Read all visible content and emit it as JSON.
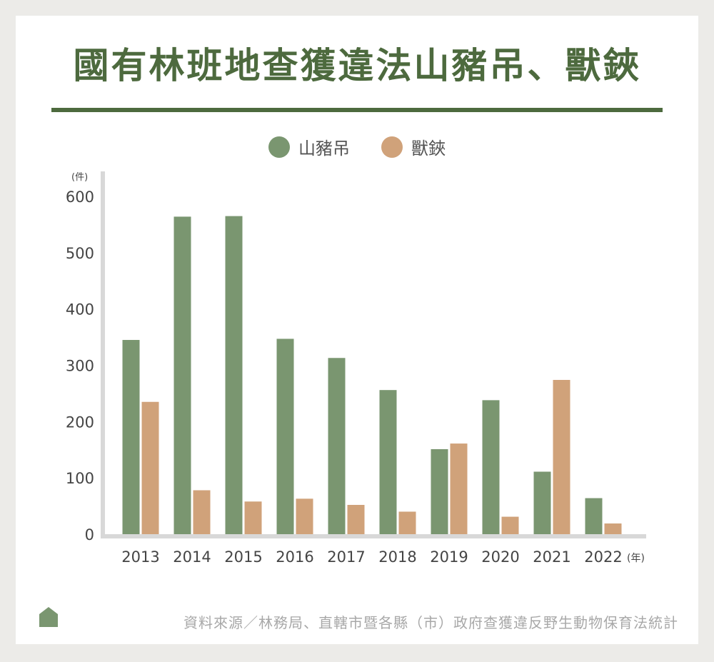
{
  "title": "國有林班地查獲違法山豬吊、獸鋏",
  "legend": [
    {
      "name": "山豬吊",
      "color": "#7a9670"
    },
    {
      "name": "獸鋏",
      "color": "#d0a27a"
    }
  ],
  "source": "資料來源／林務局、直轄市暨各縣（市）政府查獲違反野生動物保育法統計",
  "chart_data": {
    "type": "bar",
    "title": "國有林班地查獲違法山豬吊、獸鋏",
    "x_unit": "(年)",
    "y_unit": "(件)",
    "categories": [
      "2013",
      "2014",
      "2015",
      "2016",
      "2017",
      "2018",
      "2019",
      "2020",
      "2021",
      "2022"
    ],
    "series": [
      {
        "name": "山豬吊",
        "color": "#7a9670",
        "values": [
          345,
          564,
          565,
          347,
          313,
          256,
          151,
          238,
          111,
          64
        ]
      },
      {
        "name": "獸鋏",
        "color": "#d0a27a",
        "values": [
          235,
          78,
          58,
          63,
          52,
          40,
          161,
          31,
          274,
          19
        ]
      }
    ],
    "ylim": [
      0,
      600
    ],
    "yticks": [
      0,
      100,
      200,
      300,
      400,
      500,
      600
    ],
    "grid": false,
    "legend_position": "top-center"
  }
}
